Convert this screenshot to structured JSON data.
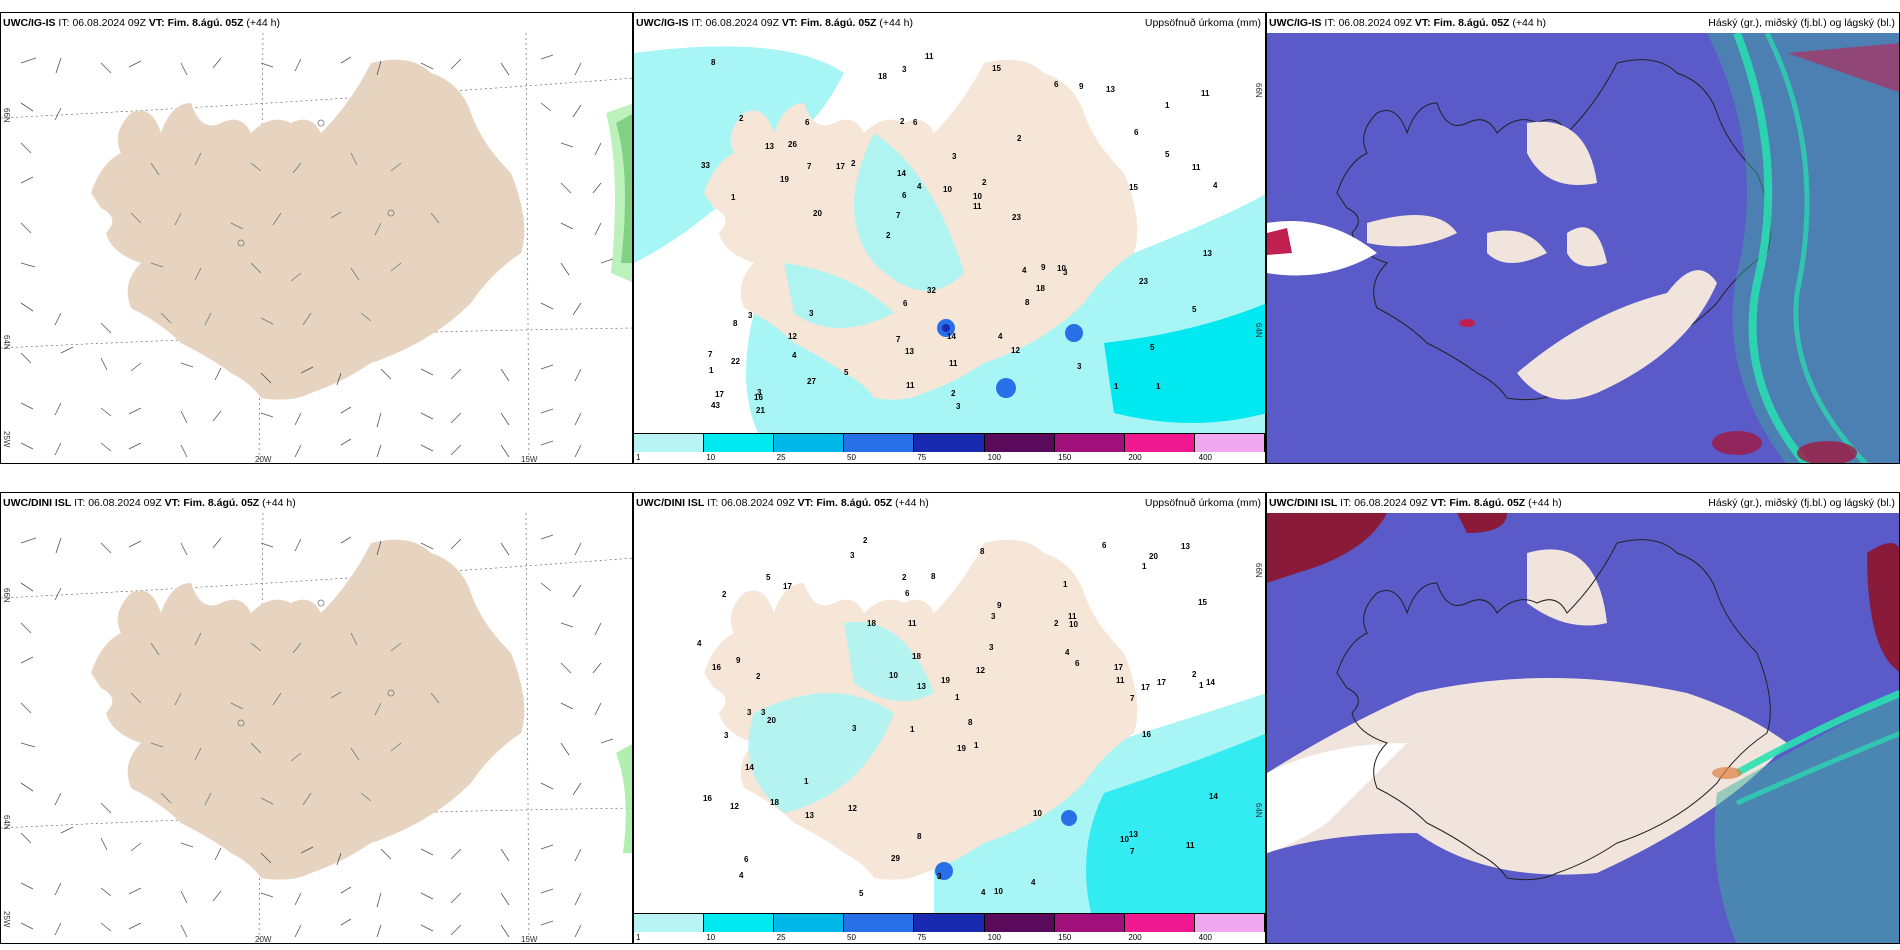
{
  "panels": [
    {
      "model": "UWC/IG-IS",
      "it_label": "IT:",
      "it_value": "06.08.2024 09Z",
      "vt_label": "VT:",
      "vt_value": "Fim. 8.ágú. 05Z",
      "lead": "(+44 h)",
      "right_title": "",
      "axes": {
        "lat1": "66N",
        "lat2": "64N",
        "lat3": "25W",
        "lon1": "20W",
        "lon2": "15W"
      }
    },
    {
      "model": "UWC/IG-IS",
      "it_label": "IT:",
      "it_value": "06.08.2024 09Z",
      "vt_label": "VT:",
      "vt_value": "Fim. 8.ágú. 05Z",
      "lead": "(+44 h)",
      "right_title": "Uppsöfnuð úrkoma (mm)",
      "axes": {
        "lat1": "66N",
        "lat2": "64N"
      },
      "numbers": [
        "1",
        "1",
        "1",
        "2",
        "2",
        "3",
        "2",
        "3",
        "3",
        "2",
        "1",
        "4",
        "6",
        "2",
        "3",
        "2",
        "3",
        "4",
        "4",
        "5",
        "7",
        "7",
        "6",
        "6",
        "6",
        "3",
        "1",
        "5",
        "10",
        "3",
        "17",
        "19",
        "8",
        "27",
        "11",
        "10",
        "17",
        "13",
        "11",
        "8",
        "6",
        "11",
        "18",
        "12",
        "12",
        "21",
        "43",
        "14",
        "13",
        "11",
        "20",
        "33",
        "26",
        "9",
        "16",
        "15",
        "18",
        "4",
        "5",
        "6",
        "5",
        "9",
        "7",
        "7",
        "8",
        "13",
        "13",
        "14",
        "11",
        "10",
        "22",
        "23",
        "23",
        "11",
        "15",
        "32",
        "3",
        "2",
        "4"
      ]
    },
    {
      "model": "UWC/IG-IS",
      "it_label": "IT:",
      "it_value": "06.08.2024 09Z",
      "vt_label": "VT:",
      "vt_value": "Fim. 8.ágú. 05Z",
      "lead": "(+44 h)",
      "right_title": "Háský (gr.), miðský (fj.bl.) og lágský (bl.)"
    },
    {
      "model": "UWC/DINI ISL",
      "it_label": "IT:",
      "it_value": "06.08.2024 09Z",
      "vt_label": "VT:",
      "vt_value": "Fim. 8.ágú. 05Z",
      "lead": "(+44 h)",
      "right_title": "",
      "axes": {
        "lat1": "66N",
        "lat2": "64N",
        "lat3": "25W",
        "lon1": "20W",
        "lon2": "15W"
      }
    },
    {
      "model": "UWC/DINI ISL",
      "it_label": "IT:",
      "it_value": "06.08.2024 09Z",
      "vt_label": "VT:",
      "vt_value": "Fim. 8.ágú. 05Z",
      "lead": "(+44 h)",
      "right_title": "Uppsöfnuð úrkoma (mm)",
      "axes": {
        "lat1": "66N",
        "lat2": "64N"
      },
      "numbers": [
        "2",
        "1",
        "1",
        "1",
        "1",
        "3",
        "2",
        "2",
        "3",
        "3",
        "1",
        "4",
        "3",
        "3",
        "4",
        "10",
        "8",
        "6",
        "6",
        "1",
        "2",
        "3",
        "14",
        "17",
        "16",
        "9",
        "13",
        "11",
        "13",
        "12",
        "10",
        "9",
        "18",
        "10",
        "10",
        "14",
        "17",
        "29",
        "13",
        "8",
        "6",
        "5",
        "4",
        "5",
        "3",
        "10",
        "7",
        "11",
        "4",
        "8",
        "6",
        "7",
        "12",
        "1",
        "8",
        "13",
        "18",
        "19",
        "20",
        "11",
        "11",
        "16",
        "17",
        "12",
        "19",
        "16",
        "17",
        "20",
        "18",
        "15",
        "14",
        "2",
        "2",
        "4",
        "3"
      ]
    },
    {
      "model": "UWC/DINI ISL",
      "it_label": "IT:",
      "it_value": "06.08.2024 09Z",
      "vt_label": "VT:",
      "vt_value": "Fim. 8.ágú. 05Z",
      "lead": "(+44 h)",
      "right_title": "Háský (gr.), miðský (fj.bl.) og lágský (bl.)"
    }
  ],
  "legend": {
    "labels": [
      "1",
      "10",
      "25",
      "50",
      "75",
      "100",
      "150",
      "200",
      "400"
    ],
    "colors": [
      "#b8f4f4",
      "#00e8f0",
      "#00b8e8",
      "#2870e8",
      "#1a2ab0",
      "#5a0a5a",
      "#a0107a",
      "#f01890",
      "#f0a8f0"
    ]
  },
  "colors": {
    "land": "#f5e6d8",
    "land_tan": "#e6d3c0",
    "precip_light": "#a8f5f5",
    "cloud_low": "#5a5ac8",
    "cloud_high": "#3cb09a",
    "cloud_mid": "#8a1a3a",
    "wind_green": "#90e890"
  }
}
